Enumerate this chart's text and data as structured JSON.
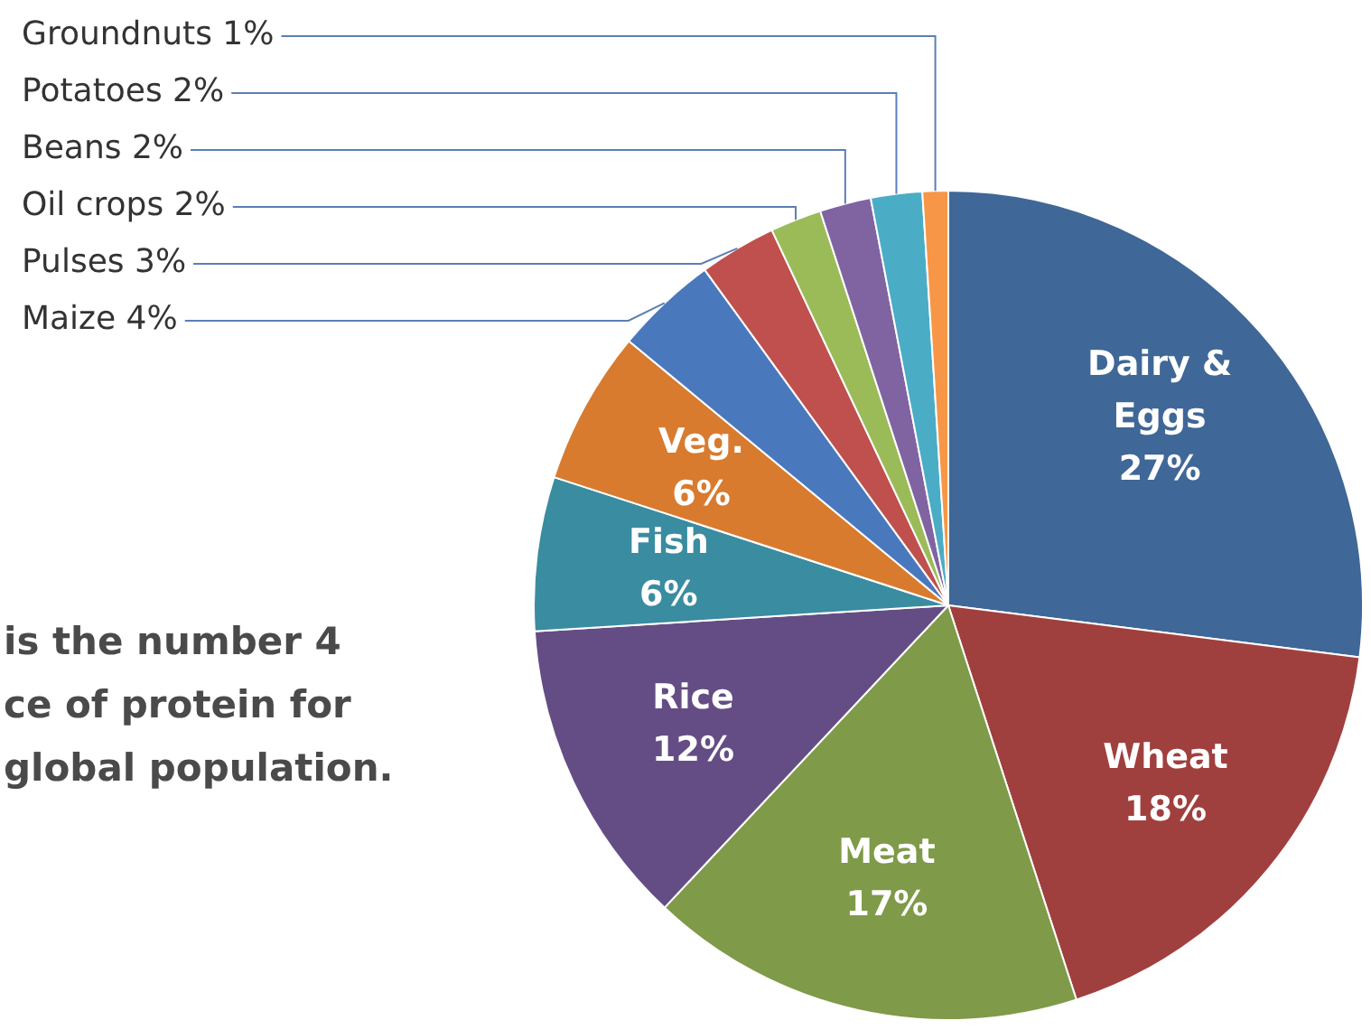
{
  "chart_data": {
    "type": "pie",
    "categories": [
      "Dairy & Eggs",
      "Wheat",
      "Meat",
      "Rice",
      "Fish",
      "Veg.",
      "Maize",
      "Pulses",
      "Oil crops",
      "Beans",
      "Potatoes",
      "Groundnuts"
    ],
    "values": [
      27,
      18,
      17,
      12,
      6,
      6,
      4,
      3,
      2,
      2,
      2,
      1
    ],
    "value_labels": [
      "27%",
      "18%",
      "17%",
      "12%",
      "6%",
      "6%",
      "4%",
      "3%",
      "2%",
      "2%",
      "2%",
      "1%"
    ],
    "colors": [
      "#3f6797",
      "#a0403e",
      "#7f9a48",
      "#644d84",
      "#3a8ca0",
      "#d87b2f",
      "#4a78bd",
      "#c0504d",
      "#9bbb59",
      "#8064a2",
      "#4bacc6",
      "#f79646"
    ],
    "annotations": [
      "is the number 4\nce of protein for\nglobal population."
    ]
  }
}
